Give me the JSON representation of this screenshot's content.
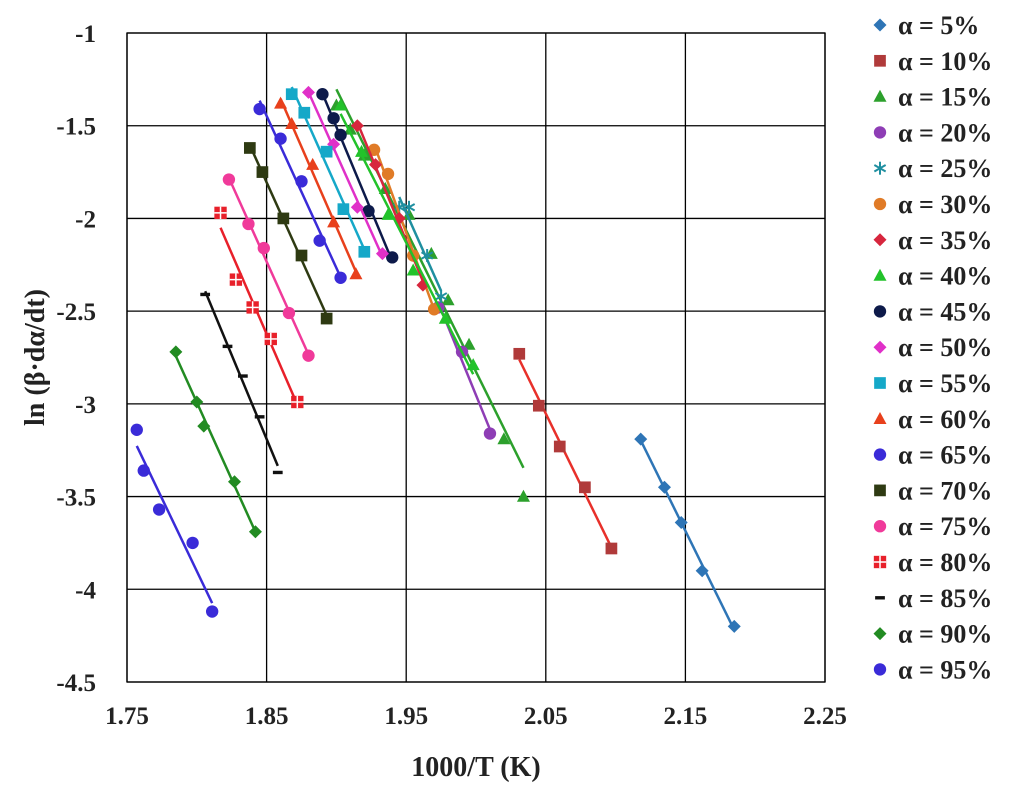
{
  "chart_data": {
    "type": "scatter",
    "title": "",
    "xlabel": "1000/T (K)",
    "ylabel": "ln (β·dα/dt)",
    "xlim": [
      1.75,
      2.25
    ],
    "ylim": [
      -4.5,
      -1
    ],
    "xticks": [
      1.75,
      1.85,
      1.95,
      2.05,
      2.15,
      2.25
    ],
    "yticks": [
      -4.5,
      -4,
      -3.5,
      -3,
      -2.5,
      -2,
      -1.5,
      -1
    ],
    "xtick_labels": [
      "1.75",
      "1.85",
      "1.95",
      "2.05",
      "2.15",
      "2.25"
    ],
    "ytick_labels": [
      "-4.5",
      "-4",
      "-3.5",
      "-3",
      "-2.5",
      "-2",
      "-1.5",
      "-1"
    ],
    "grid": true,
    "legend_position": "right",
    "series": [
      {
        "name": "α = 5%",
        "marker": "diamond",
        "color": "#2e75b6",
        "x": [
          2.118,
          2.135,
          2.147,
          2.162,
          2.185
        ],
        "y": [
          -3.19,
          -3.45,
          -3.64,
          -3.9,
          -4.2
        ]
      },
      {
        "name": "α = 10%",
        "marker": "square",
        "color": "#b03a3a",
        "line_color": "#e8302a",
        "x": [
          2.031,
          2.045,
          2.06,
          2.078,
          2.097
        ],
        "y": [
          -2.73,
          -3.01,
          -3.23,
          -3.45,
          -3.78
        ]
      },
      {
        "name": "α = 15%",
        "marker": "triangle",
        "color": "#2ca02c",
        "x": [
          1.9,
          1.91,
          1.92,
          1.935,
          1.952,
          1.968,
          1.98,
          1.995,
          2.02,
          2.034
        ],
        "y": [
          -1.39,
          -1.52,
          -1.66,
          -1.84,
          -1.98,
          -2.19,
          -2.44,
          -2.68,
          -3.19,
          -3.5
        ]
      },
      {
        "name": "α = 20%",
        "marker": "circle",
        "color": "#8e3db5",
        "x": [
          1.973,
          1.99,
          2.01
        ],
        "y": [
          -2.48,
          -2.72,
          -3.16
        ]
      },
      {
        "name": "α = 25%",
        "marker": "asterisk",
        "color": "#1f8fa0",
        "x": [
          1.945,
          1.952,
          1.965,
          1.975
        ],
        "y": [
          -1.94,
          -1.94,
          -2.2,
          -2.42
        ]
      },
      {
        "name": "α = 30%",
        "marker": "circle",
        "color": "#e07b27",
        "x": [
          1.927,
          1.937,
          1.955,
          1.97
        ],
        "y": [
          -1.63,
          -1.76,
          -2.2,
          -2.49
        ]
      },
      {
        "name": "α = 35%",
        "marker": "diamond",
        "color": "#d7263d",
        "x": [
          1.915,
          1.928,
          1.945,
          1.962
        ],
        "y": [
          -1.5,
          -1.71,
          -2.0,
          -2.36
        ]
      },
      {
        "name": "α = 40%",
        "marker": "triangle",
        "color": "#22c22a",
        "x": [
          1.903,
          1.918,
          1.937,
          1.955,
          1.978,
          1.998
        ],
        "y": [
          -1.39,
          -1.64,
          -1.98,
          -2.28,
          -2.54,
          -2.79
        ]
      },
      {
        "name": "α = 45%",
        "marker": "circle",
        "color": "#0d1a4a",
        "x": [
          1.89,
          1.898,
          1.903,
          1.923,
          1.94
        ],
        "y": [
          -1.33,
          -1.46,
          -1.55,
          -1.96,
          -2.21
        ]
      },
      {
        "name": "α = 50%",
        "marker": "diamond",
        "color": "#e030c8",
        "x": [
          1.88,
          1.898,
          1.915,
          1.933
        ],
        "y": [
          -1.32,
          -1.6,
          -1.94,
          -2.19
        ]
      },
      {
        "name": "α = 55%",
        "marker": "square",
        "color": "#15a8c8",
        "x": [
          1.868,
          1.877,
          1.893,
          1.905,
          1.92
        ],
        "y": [
          -1.33,
          -1.43,
          -1.64,
          -1.95,
          -2.18
        ]
      },
      {
        "name": "α = 60%",
        "marker": "triangle",
        "color": "#e8401c",
        "x": [
          1.86,
          1.868,
          1.883,
          1.898,
          1.914
        ],
        "y": [
          -1.38,
          -1.49,
          -1.71,
          -2.02,
          -2.3
        ]
      },
      {
        "name": "α = 65%",
        "marker": "circle",
        "color": "#3a2bd8",
        "x": [
          1.845,
          1.86,
          1.875,
          1.888,
          1.903
        ],
        "y": [
          -1.41,
          -1.57,
          -1.8,
          -2.12,
          -2.32
        ]
      },
      {
        "name": "α = 70%",
        "marker": "square",
        "color": "#2e3a12",
        "x": [
          1.838,
          1.847,
          1.862,
          1.875,
          1.893
        ],
        "y": [
          -1.62,
          -1.75,
          -2.0,
          -2.2,
          -2.54
        ]
      },
      {
        "name": "α = 75%",
        "marker": "circle",
        "color": "#f03a9a",
        "x": [
          1.823,
          1.837,
          1.848,
          1.866,
          1.88
        ],
        "y": [
          -1.79,
          -2.03,
          -2.16,
          -2.51,
          -2.74
        ]
      },
      {
        "name": "α = 80%",
        "marker": "squarecross",
        "color": "#e8202a",
        "x": [
          1.817,
          1.828,
          1.84,
          1.853,
          1.872
        ],
        "y": [
          -1.97,
          -2.33,
          -2.48,
          -2.65,
          -2.99
        ]
      },
      {
        "name": "α = 85%",
        "marker": "dash",
        "color": "#111111",
        "x": [
          1.806,
          1.822,
          1.833,
          1.845,
          1.858
        ],
        "y": [
          -2.41,
          -2.69,
          -2.85,
          -3.07,
          -3.37
        ]
      },
      {
        "name": "α = 90%",
        "marker": "diamond",
        "color": "#228b22",
        "x": [
          1.785,
          1.8,
          1.805,
          1.827,
          1.842
        ],
        "y": [
          -2.72,
          -2.99,
          -3.12,
          -3.42,
          -3.69
        ]
      },
      {
        "name": "α = 95%",
        "marker": "circle",
        "color": "#3a2bd8",
        "x": [
          1.757,
          1.762,
          1.773,
          1.797,
          1.811
        ],
        "y": [
          -3.14,
          -3.36,
          -3.57,
          -3.75,
          -4.12
        ]
      }
    ]
  }
}
